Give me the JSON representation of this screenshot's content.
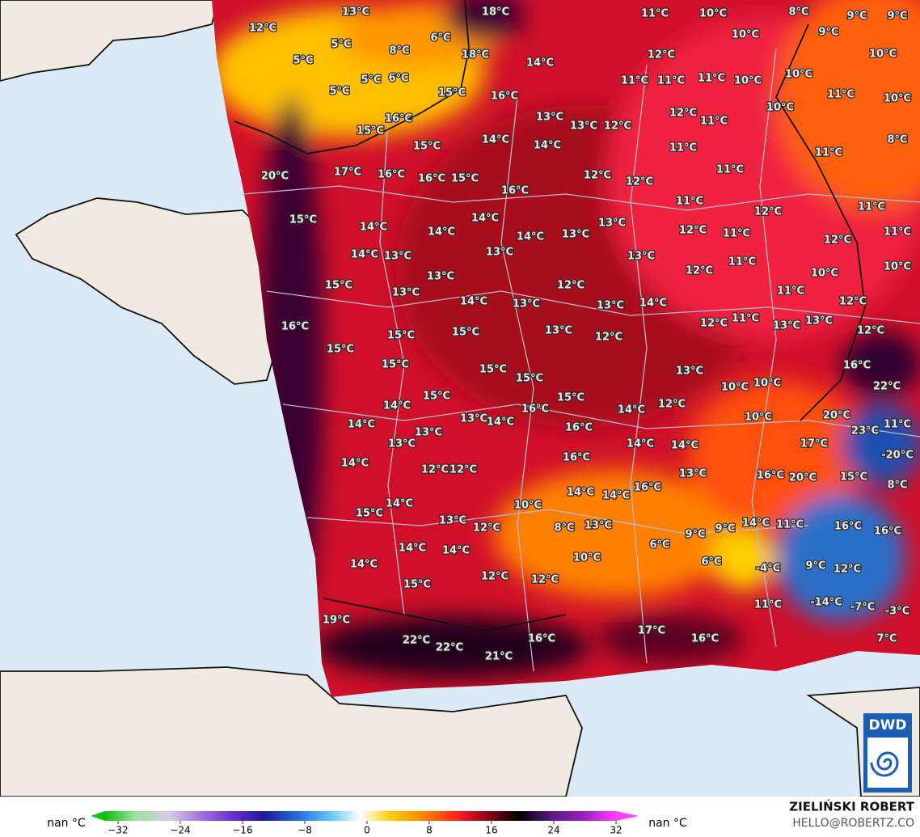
{
  "map": {
    "labels": [
      "13°C",
      "12°C",
      "18°C",
      "11°C",
      "10°C",
      "8°C",
      "9°C",
      "9°C",
      "5°C",
      "6°C",
      "10°C",
      "9°C",
      "12°C",
      "8°C",
      "18°C",
      "5°C",
      "14°C",
      "10°C",
      "5°C",
      "6°C",
      "5°C",
      "11°C",
      "11°C",
      "11°C",
      "10°C",
      "10°C",
      "11°C",
      "10°C",
      "15°C",
      "16°C",
      "10°C",
      "12°C",
      "13°C",
      "13°C",
      "12°C",
      "11°C",
      "16°C",
      "15°C",
      "8°C",
      "14°C",
      "15°C",
      "14°C",
      "11°C",
      "11°C",
      "20°C",
      "17°C",
      "16°C",
      "16°C",
      "15°C",
      "12°C",
      "12°C",
      "11°C",
      "16°C",
      "11°C",
      "11°C",
      "12°C",
      "15°C",
      "14°C",
      "14°C",
      "13°C",
      "14°C",
      "14°C",
      "13°C",
      "12°C",
      "11°C",
      "12°C",
      "11°C",
      "14°C",
      "13°C",
      "13°C",
      "13°C",
      "11°C",
      "10°C",
      "12°C",
      "10°C",
      "15°C",
      "13°C",
      "12°C",
      "11°C",
      "13°C",
      "14°C",
      "13°C",
      "13°C",
      "14°C",
      "12°C",
      "16°C",
      "15°C",
      "15°C",
      "13°C",
      "12°C",
      "12°C",
      "11°C",
      "13°C",
      "13°C",
      "12°C",
      "15°C",
      "15°C",
      "15°C",
      "15°C",
      "13°C",
      "16°C",
      "22°C",
      "10°C",
      "10°C",
      "14°C",
      "15°C",
      "15°C",
      "16°C",
      "14°C",
      "12°C",
      "10°C",
      "20°C",
      "11°C",
      "14°C",
      "13°C",
      "14°C",
      "13°C",
      "16°C",
      "13°C",
      "23°C",
      "17°C",
      "14°C",
      "12°C",
      "12°C",
      "16°C",
      "14°C",
      "14°C",
      "-20°C",
      "13°C",
      "16°C",
      "20°C",
      "15°C",
      "8°C",
      "14°C",
      "14°C",
      "16°C",
      "14°C",
      "15°C",
      "10°C",
      "13°C",
      "12°C",
      "8°C",
      "13°C",
      "14°C",
      "11°C",
      "16°C",
      "16°C",
      "14°C",
      "14°C",
      "10°C",
      "6°C",
      "9°C",
      "9°C",
      "6°C",
      "-4°C",
      "9°C",
      "12°C",
      "14°C",
      "12°C",
      "12°C",
      "15°C",
      "11°C",
      "-14°C",
      "-7°C",
      "-3°C",
      "19°C",
      "17°C",
      "22°C",
      "22°C",
      "21°C",
      "16°C",
      "16°C",
      "7°C"
    ],
    "colorbar": {
      "left_label": "nan °C",
      "right_label": "nan °C",
      "ticks": [
        {
          "value": -32,
          "label": "−32"
        },
        {
          "value": -24,
          "label": "−24"
        },
        {
          "value": -16,
          "label": "−16"
        },
        {
          "value": -8,
          "label": "−8"
        },
        0,
        8,
        16,
        24,
        32
      ]
    },
    "author": "ZIELIŃSKI ROBERT",
    "contact": "HELLO@ROBERTZ.CO",
    "logo": "DWD"
  }
}
